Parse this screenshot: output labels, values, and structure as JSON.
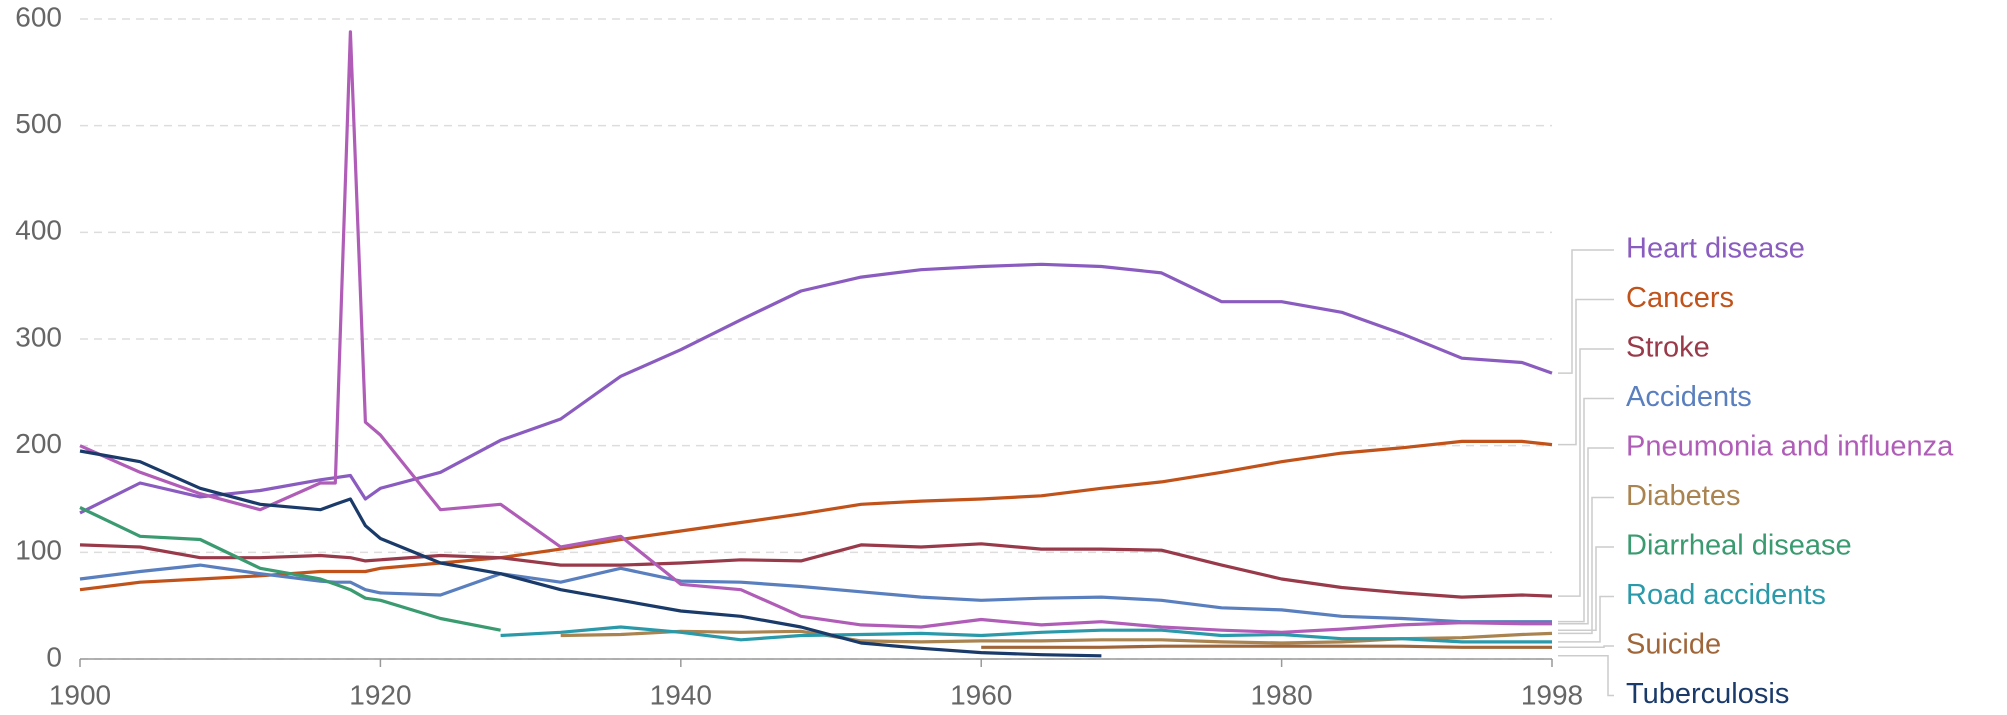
{
  "chart_data": {
    "type": "line",
    "x": [
      1900,
      1904,
      1908,
      1912,
      1916,
      1917,
      1918,
      1919,
      1920,
      1924,
      1928,
      1932,
      1936,
      1940,
      1944,
      1948,
      1952,
      1956,
      1960,
      1964,
      1968,
      1972,
      1976,
      1980,
      1984,
      1988,
      1992,
      1996,
      1998
    ],
    "xlim": [
      1900,
      1998
    ],
    "xticks": [
      1900,
      1920,
      1940,
      1960,
      1980,
      1998
    ],
    "ylim": [
      0,
      600
    ],
    "yticks": [
      0,
      100,
      200,
      300,
      400,
      500,
      600
    ],
    "grid": true,
    "series": [
      {
        "name": "Heart disease",
        "color": "#8a5cc0",
        "values": [
          137,
          165,
          152,
          158,
          168,
          170,
          172,
          150,
          160,
          175,
          205,
          225,
          265,
          290,
          318,
          345,
          358,
          365,
          368,
          370,
          368,
          362,
          335,
          335,
          325,
          305,
          282,
          278,
          268
        ]
      },
      {
        "name": "Cancers",
        "color": "#c0521a",
        "values": [
          65,
          72,
          75,
          78,
          82,
          82,
          82,
          82,
          85,
          90,
          95,
          103,
          112,
          120,
          128,
          136,
          145,
          148,
          150,
          153,
          160,
          166,
          175,
          185,
          193,
          198,
          204,
          204,
          201
        ]
      },
      {
        "name": "Stroke",
        "color": "#993a4a",
        "values": [
          107,
          105,
          95,
          95,
          97,
          96,
          95,
          92,
          93,
          97,
          95,
          88,
          88,
          90,
          93,
          92,
          107,
          105,
          108,
          103,
          103,
          102,
          88,
          75,
          67,
          62,
          58,
          60,
          59
        ]
      },
      {
        "name": "Accidents",
        "color": "#5a7fbf",
        "values": [
          75,
          82,
          88,
          80,
          73,
          72,
          72,
          65,
          62,
          60,
          80,
          72,
          85,
          73,
          72,
          68,
          63,
          58,
          55,
          57,
          58,
          55,
          48,
          46,
          40,
          38,
          35,
          35,
          35
        ]
      },
      {
        "name": "Pneumonia and influenza",
        "color": "#b05db8",
        "values": [
          200,
          175,
          155,
          140,
          165,
          165,
          588,
          222,
          210,
          140,
          145,
          105,
          115,
          70,
          65,
          40,
          32,
          30,
          37,
          32,
          35,
          30,
          27,
          25,
          28,
          32,
          34,
          33,
          33
        ]
      },
      {
        "name": "Diabetes",
        "color": "#a98350",
        "values": [
          null,
          null,
          null,
          null,
          null,
          null,
          null,
          null,
          null,
          null,
          null,
          22,
          23,
          26,
          25,
          26,
          17,
          16,
          17,
          17,
          18,
          18,
          16,
          15,
          16,
          19,
          20,
          23,
          24
        ]
      },
      {
        "name": "Diarrheal disease",
        "color": "#3a9a70",
        "values": [
          142,
          115,
          112,
          85,
          75,
          70,
          65,
          57,
          55,
          38,
          27,
          null,
          null,
          null,
          null,
          null,
          null,
          null,
          null,
          null,
          null,
          null,
          null,
          null,
          null,
          null,
          null,
          null,
          null
        ]
      },
      {
        "name": "Road accidents",
        "color": "#2a9aaa",
        "values": [
          null,
          null,
          null,
          null,
          null,
          null,
          null,
          null,
          null,
          null,
          22,
          25,
          30,
          25,
          18,
          22,
          23,
          24,
          22,
          25,
          27,
          27,
          22,
          23,
          19,
          19,
          16,
          16,
          16
        ]
      },
      {
        "name": "Suicide",
        "color": "#a0663a",
        "values": [
          null,
          null,
          null,
          null,
          null,
          null,
          null,
          null,
          null,
          null,
          null,
          null,
          null,
          null,
          null,
          null,
          null,
          null,
          11,
          11,
          11,
          12,
          12,
          12,
          12,
          12,
          11,
          11,
          11
        ]
      },
      {
        "name": "Tuberculosis",
        "color": "#1a3a6a",
        "values": [
          195,
          185,
          160,
          145,
          140,
          145,
          150,
          125,
          113,
          90,
          80,
          65,
          55,
          45,
          40,
          30,
          15,
          10,
          6,
          4,
          3,
          null,
          null,
          null,
          null,
          null,
          null,
          null,
          null
        ]
      }
    ]
  }
}
